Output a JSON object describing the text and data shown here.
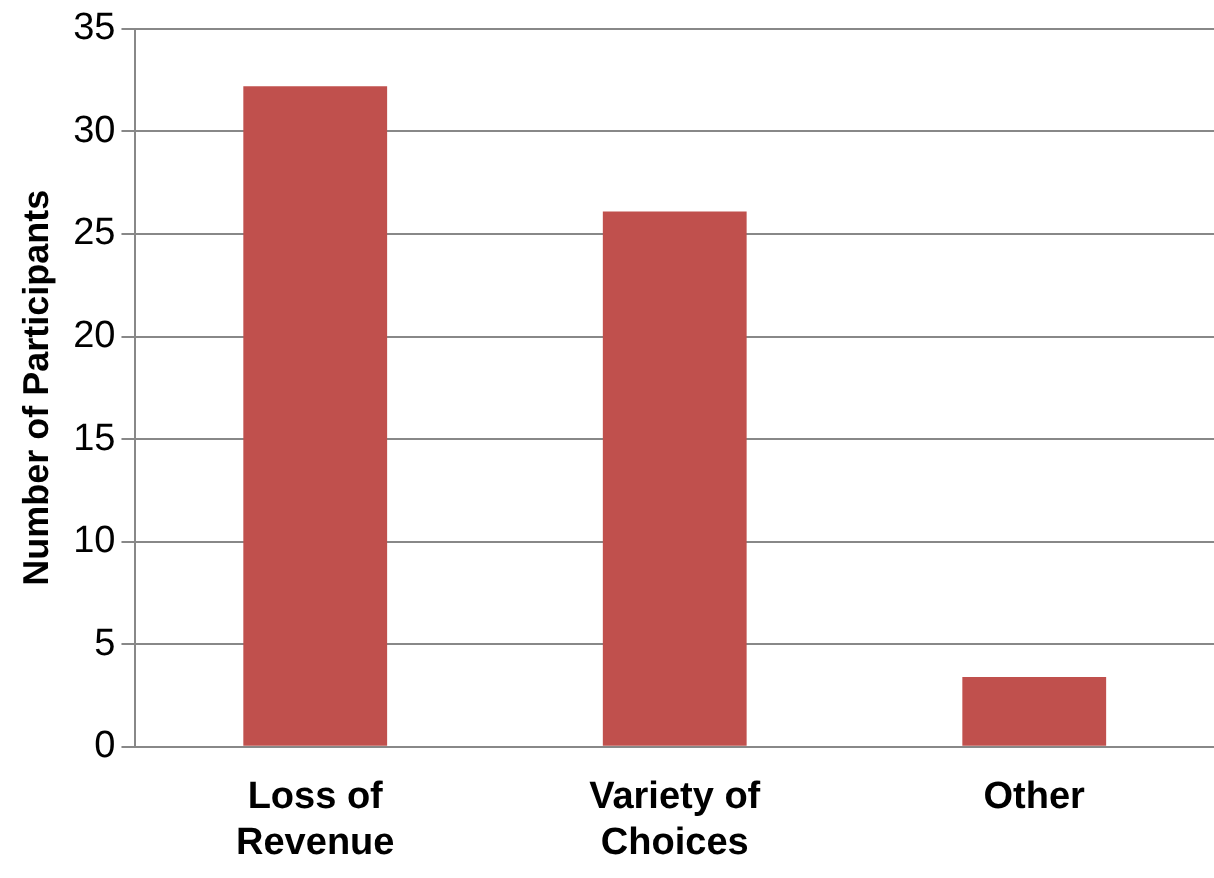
{
  "chart_data": {
    "type": "bar",
    "ylabel": "Number of Participants",
    "categories": [
      "Loss of Revenue",
      "Variety of Choices",
      "Other"
    ],
    "values": [
      32.2,
      26.1,
      3.4
    ],
    "color": "#c0504d",
    "ylim": [
      0,
      35
    ],
    "yticks": [
      0,
      5,
      10,
      15,
      20,
      25,
      30,
      35
    ],
    "grid": "y",
    "legend": false
  }
}
